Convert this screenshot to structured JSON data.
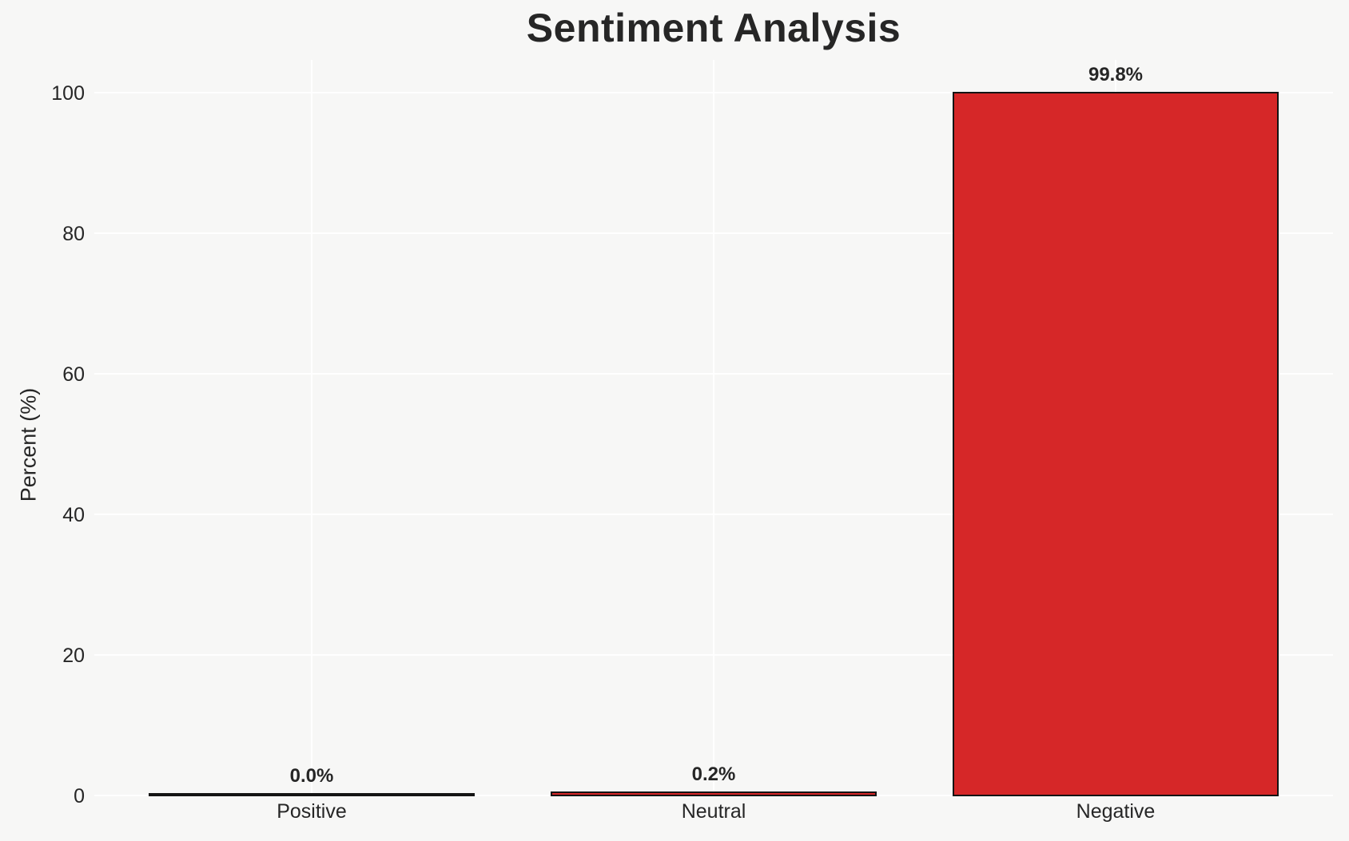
{
  "chart_data": {
    "type": "bar",
    "title": "Sentiment Analysis",
    "xlabel": "",
    "ylabel": "Percent (%)",
    "categories": [
      "Positive",
      "Neutral",
      "Negative"
    ],
    "values": [
      0.0,
      0.2,
      99.8
    ],
    "bar_labels": [
      "0.0%",
      "0.2%",
      "99.8%"
    ],
    "yticks": [
      0,
      20,
      40,
      60,
      80,
      100
    ],
    "ytick_labels": [
      "0",
      "20",
      "40",
      "60",
      "80",
      "100"
    ],
    "ylim": [
      0,
      104.8
    ],
    "grid": true,
    "legend_position": "none",
    "bar_color": "#d62728",
    "bar_edge_color": "#141414",
    "background_color": "#f7f7f6",
    "gridline_color": "#ffffff",
    "text_color": "#262626"
  }
}
